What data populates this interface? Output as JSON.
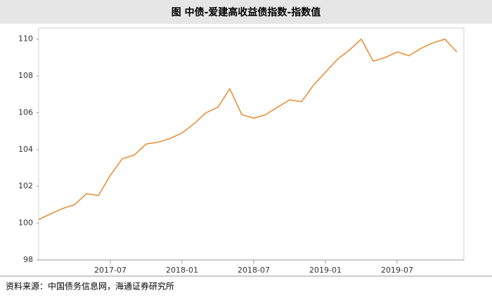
{
  "chart_data": {
    "type": "line",
    "title": "图  中债-爱建高收益债指数-指数值",
    "source": "资料来源：中国债务信息网，海通证券研究所",
    "x": [
      "2017-01",
      "2017-02",
      "2017-03",
      "2017-04",
      "2017-05",
      "2017-06",
      "2017-07",
      "2017-08",
      "2017-09",
      "2017-10",
      "2017-11",
      "2017-12",
      "2018-01",
      "2018-02",
      "2018-03",
      "2018-04",
      "2018-05",
      "2018-06",
      "2018-07",
      "2018-08",
      "2018-09",
      "2018-10",
      "2018-11",
      "2018-12",
      "2019-01",
      "2019-02",
      "2019-03",
      "2019-04",
      "2019-05",
      "2019-06",
      "2019-07",
      "2019-08",
      "2019-09",
      "2019-10",
      "2019-11",
      "2019-12"
    ],
    "series": [
      {
        "name": "中债-爱建高收益债指数",
        "color": "#e8903a",
        "values": [
          100.2,
          100.5,
          100.8,
          101.0,
          101.6,
          101.5,
          102.6,
          103.5,
          103.7,
          104.3,
          104.4,
          104.6,
          104.9,
          105.4,
          106.0,
          106.3,
          107.3,
          105.9,
          105.7,
          105.9,
          106.3,
          106.7,
          106.6,
          107.5,
          108.2,
          108.9,
          109.4,
          110.0,
          108.8,
          109.0,
          109.3,
          109.1,
          109.5,
          109.8,
          110.0,
          109.3
        ]
      }
    ],
    "xlim": [
      "2017-01",
      "2019-12"
    ],
    "xticks": [
      "2017-07",
      "2018-01",
      "2018-07",
      "2019-01",
      "2019-07"
    ],
    "ylim": [
      98,
      110.6
    ],
    "yticks": [
      98,
      100,
      102,
      104,
      106,
      108,
      110
    ],
    "grid": false
  }
}
